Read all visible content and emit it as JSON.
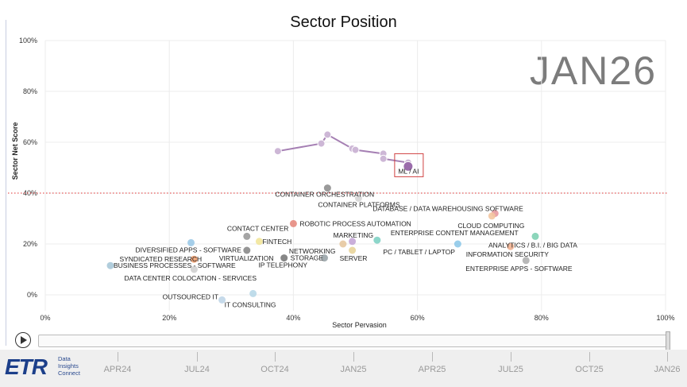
{
  "header": {
    "title": "Sector Position",
    "date_stamp": "JAN26"
  },
  "chart_data": {
    "type": "scatter",
    "title": "Sector Position",
    "xlabel": "Sector Pervasion",
    "ylabel": "Sector Net Score",
    "xlim": [
      0,
      100
    ],
    "ylim": [
      0,
      100
    ],
    "x_ticks": [
      "0%",
      "20%",
      "40%",
      "60%",
      "80%",
      "100%"
    ],
    "y_ticks": [
      "0%",
      "20%",
      "40%",
      "60%",
      "80%",
      "100%"
    ],
    "reference_line": {
      "y": 40,
      "style": "dotted",
      "color": "#e03030"
    },
    "points": [
      {
        "label": "CONTAINER ORCHESTRATION",
        "x": 45.5,
        "y": 42,
        "color": "#8f8f8f"
      },
      {
        "label": "CONTAINER PLATFORMS",
        "x": 50.5,
        "y": 38,
        "color": "#d7d7d7"
      },
      {
        "label": "DATABASE / DATA WAREHOUSING SOFTWARE",
        "x": 72.5,
        "y": 32,
        "color": "#e79aa0"
      },
      {
        "label": "CLOUD COMPUTING",
        "x": 72,
        "y": 31,
        "color": "#f3c6a0"
      },
      {
        "label": "ROBOTIC PROCESS AUTOMATION",
        "x": 40,
        "y": 28,
        "color": "#e58b80"
      },
      {
        "label": "CONTACT CENTER",
        "x": 32.5,
        "y": 23,
        "color": "#9a9a9a"
      },
      {
        "label": "FINTECH",
        "x": 34.5,
        "y": 21,
        "color": "#f2e69a"
      },
      {
        "label": "MARKETING",
        "x": 49.5,
        "y": 21,
        "color": "#c4a6d6"
      },
      {
        "label": "ENTERPRISE CONTENT MANAGEMENT",
        "x": 53.5,
        "y": 21.5,
        "color": "#7fd1c4"
      },
      {
        "label": "ANALYTICS / B.I. / BIG DATA",
        "x": 79,
        "y": 23,
        "color": "#7fd1b4"
      },
      {
        "label": "PC / TABLET / LAPTOP",
        "x": 66.5,
        "y": 20,
        "color": "#8fc9e9"
      },
      {
        "label": "DIVERSIFIED APPS - SOFTWARE",
        "x": 23.5,
        "y": 20.5,
        "color": "#9ccae8"
      },
      {
        "label": "NETWORKING",
        "x": 48,
        "y": 20,
        "color": "#e7c8a0"
      },
      {
        "label": "INFORMATION SECURITY",
        "x": 75,
        "y": 19,
        "color": "#f0b090"
      },
      {
        "label": "VIRTUALIZATION",
        "x": 32.5,
        "y": 17.5,
        "color": "#8a8a8a"
      },
      {
        "label": "SERVER",
        "x": 49.5,
        "y": 17.5,
        "color": "#e8d49a"
      },
      {
        "label": "STORAGE",
        "x": 38.5,
        "y": 14.5,
        "color": "#7a7a7a"
      },
      {
        "label": "IP TELEPHONY",
        "x": 45,
        "y": 14.5,
        "color": "#9aa4a8"
      },
      {
        "label": "SYNDICATED RESEARCH",
        "x": 24,
        "y": 14,
        "color": "#f0a070"
      },
      {
        "label": "BUSINESS PROCESSES - SOFTWARE",
        "x": 10.5,
        "y": 11.5,
        "color": "#a8c8d8"
      },
      {
        "label": "ENTERPRISE APPS - SOFTWARE",
        "x": 77.5,
        "y": 13.5,
        "color": "#b0b0b0"
      },
      {
        "label": "DATA CENTER COLOCATION - SERVICES",
        "x": 24,
        "y": 10,
        "color": "#d0d0d0"
      },
      {
        "label": "OUTSOURCED IT",
        "x": 28.5,
        "y": -2,
        "color": "#c0d6e8"
      },
      {
        "label": "IT CONSULTING",
        "x": 33.5,
        "y": 0.5,
        "color": "#b8d8e8"
      }
    ],
    "trail": {
      "label": "ML / AI",
      "highlight": true,
      "color": "#a57fb3",
      "points": [
        {
          "x": 37.5,
          "y": 56.5
        },
        {
          "x": 44.5,
          "y": 59.5
        },
        {
          "x": 45.5,
          "y": 63
        },
        {
          "x": 49.5,
          "y": 57.5
        },
        {
          "x": 50,
          "y": 57
        },
        {
          "x": 54.5,
          "y": 55.5
        },
        {
          "x": 54.5,
          "y": 53.5
        },
        {
          "x": 58.5,
          "y": 52
        },
        {
          "x": 58.5,
          "y": 50.5
        }
      ]
    },
    "legend": "none"
  },
  "timeline": {
    "labels": [
      "APR24",
      "JUL24",
      "OCT24",
      "JAN25",
      "APR25",
      "JUL25",
      "OCT25",
      "JAN26"
    ]
  },
  "branding": {
    "logo_text": "ETR",
    "logo_sub": [
      "Data",
      "Insights",
      "Connect"
    ]
  }
}
